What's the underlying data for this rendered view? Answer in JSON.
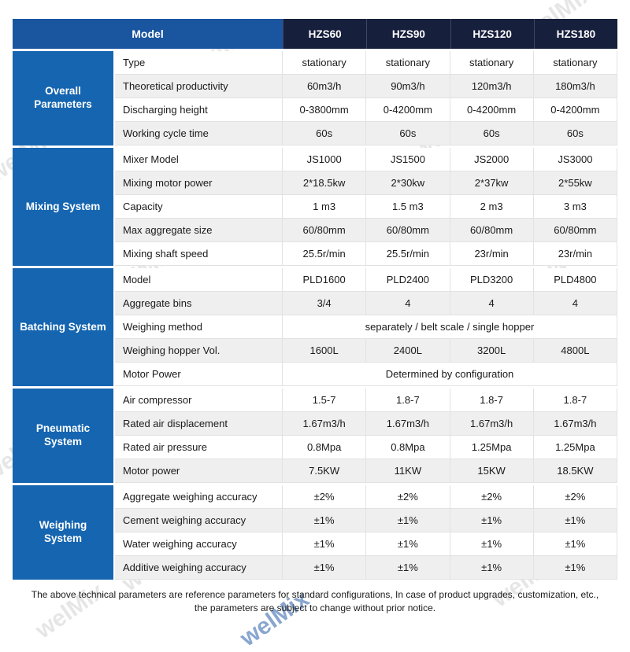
{
  "watermark": "welMix",
  "header": {
    "model_label": "Model",
    "columns": [
      "HZS60",
      "HZS90",
      "HZS120",
      "HZS180"
    ]
  },
  "sections": [
    {
      "name": "Overall Parameters",
      "rows": [
        {
          "label": "Type",
          "values": [
            "stationary",
            "stationary",
            "stationary",
            "stationary"
          ]
        },
        {
          "label": "Theoretical productivity",
          "values": [
            "60m3/h",
            "90m3/h",
            "120m3/h",
            "180m3/h"
          ]
        },
        {
          "label": "Discharging height",
          "values": [
            "0-3800mm",
            "0-4200mm",
            "0-4200mm",
            "0-4200mm"
          ]
        },
        {
          "label": "Working cycle time",
          "values": [
            "60s",
            "60s",
            "60s",
            "60s"
          ]
        }
      ]
    },
    {
      "name": "Mixing System",
      "rows": [
        {
          "label": "Mixer Model",
          "values": [
            "JS1000",
            "JS1500",
            "JS2000",
            "JS3000"
          ]
        },
        {
          "label": "Mixing motor power",
          "values": [
            "2*18.5kw",
            "2*30kw",
            "2*37kw",
            "2*55kw"
          ]
        },
        {
          "label": "Capacity",
          "values": [
            "1 m3",
            "1.5 m3",
            "2 m3",
            "3 m3"
          ]
        },
        {
          "label": "Max aggregate size",
          "values": [
            "60/80mm",
            "60/80mm",
            "60/80mm",
            "60/80mm"
          ]
        },
        {
          "label": "Mixing shaft speed",
          "values": [
            "25.5r/min",
            "25.5r/min",
            "23r/min",
            "23r/min"
          ]
        }
      ]
    },
    {
      "name": "Batching System",
      "rows": [
        {
          "label": "Model",
          "values": [
            "PLD1600",
            "PLD2400",
            "PLD3200",
            "PLD4800"
          ]
        },
        {
          "label": "Aggregate bins",
          "values": [
            "3/4",
            "4",
            "4",
            "4"
          ]
        },
        {
          "label": "Weighing method",
          "span": true,
          "value": "separately  / belt scale / single hopper"
        },
        {
          "label": "Weighing hopper Vol.",
          "values": [
            "1600L",
            "2400L",
            "3200L",
            "4800L"
          ]
        },
        {
          "label": "Motor Power",
          "span": true,
          "value": "Determined by configuration"
        }
      ]
    },
    {
      "name": "Pneumatic System",
      "rows": [
        {
          "label": "Air compressor",
          "values": [
            "1.5-7",
            "1.8-7",
            "1.8-7",
            "1.8-7"
          ]
        },
        {
          "label": "Rated air displacement",
          "values": [
            "1.67m3/h",
            "1.67m3/h",
            "1.67m3/h",
            "1.67m3/h"
          ]
        },
        {
          "label": "Rated air pressure",
          "values": [
            "0.8Mpa",
            "0.8Mpa",
            "1.25Mpa",
            "1.25Mpa"
          ]
        },
        {
          "label": "Motor power",
          "values": [
            "7.5KW",
            "11KW",
            "15KW",
            "18.5KW"
          ]
        }
      ]
    },
    {
      "name": "Weighing System",
      "rows": [
        {
          "label": "Aggregate weighing accuracy",
          "values": [
            "±2%",
            "±2%",
            "±2%",
            "±2%"
          ]
        },
        {
          "label": "Cement weighing accuracy",
          "values": [
            "±1%",
            "±1%",
            "±1%",
            "±1%"
          ]
        },
        {
          "label": "Water weighing accuracy",
          "values": [
            "±1%",
            "±1%",
            "±1%",
            "±1%"
          ]
        },
        {
          "label": "Additive weighing accuracy",
          "values": [
            "±1%",
            "±1%",
            "±1%",
            "±1%"
          ]
        }
      ]
    }
  ],
  "footer": {
    "line1": "The above technical parameters are reference parameters for standard configurations, In case of  product upgrades, customization, etc.,",
    "line2": "the parameters are subject to change without prior notice."
  },
  "colors": {
    "group_blue": "#1565b0",
    "model_blue": "#1a55a0",
    "header_navy": "#161f3c",
    "alt_row": "#efefef"
  }
}
